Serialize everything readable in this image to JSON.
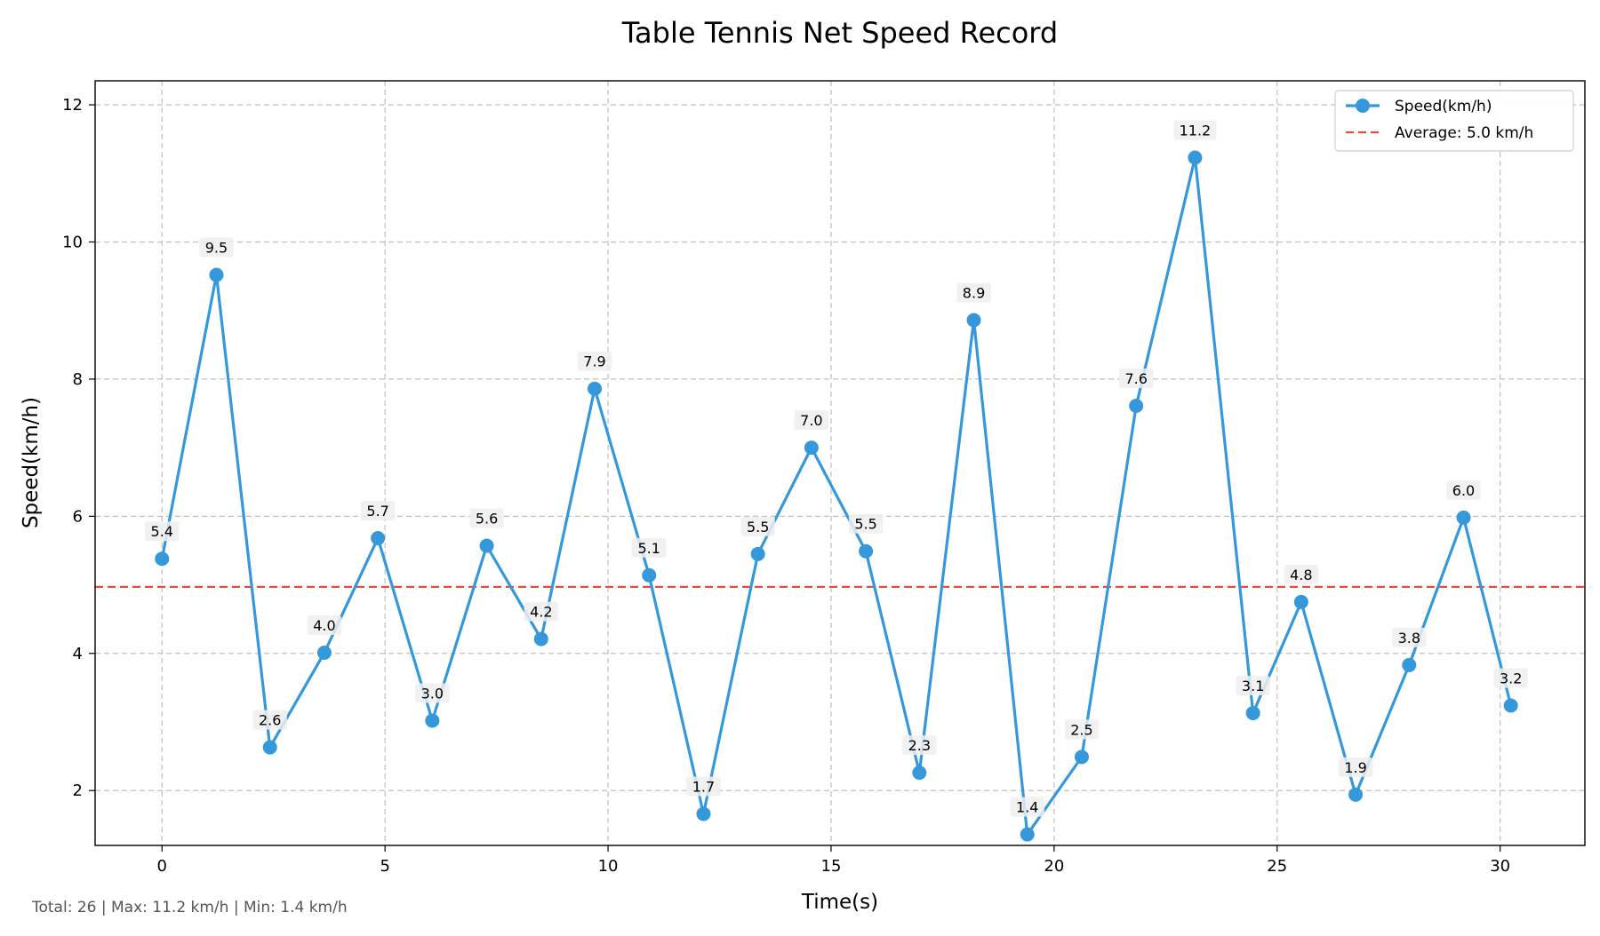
{
  "chart_data": {
    "type": "line",
    "title": "Table Tennis Net Speed Record",
    "xlabel": "Time(s)",
    "ylabel": "Speed(km/h)",
    "xlim": [
      -1.5,
      31.9
    ],
    "ylim": [
      1.2,
      12.35
    ],
    "x_ticks": [
      0,
      5,
      10,
      15,
      20,
      25,
      30
    ],
    "x_tick_labels": [
      "0",
      "5",
      "10",
      "15",
      "20",
      "25",
      "30"
    ],
    "y_ticks": [
      2,
      4,
      6,
      8,
      10,
      12
    ],
    "y_tick_labels": [
      "2",
      "4",
      "6",
      "8",
      "10",
      "12"
    ],
    "grid": true,
    "legend_position": "top-right",
    "series": [
      {
        "name": "Speed(km/h)",
        "color": "#3498db",
        "x": [
          0,
          1.22,
          2.42,
          3.64,
          4.84,
          6.06,
          7.28,
          8.5,
          9.7,
          10.92,
          12.14,
          13.36,
          14.56,
          15.78,
          16.98,
          18.2,
          19.4,
          20.62,
          21.84,
          23.16,
          24.46,
          25.54,
          26.76,
          27.96,
          29.18,
          30.24
        ],
        "y": [
          5.38,
          9.52,
          2.63,
          4.01,
          5.68,
          3.02,
          5.57,
          4.21,
          7.86,
          5.14,
          1.66,
          5.45,
          7.0,
          5.49,
          2.26,
          8.86,
          1.36,
          2.49,
          7.61,
          11.23,
          3.13,
          4.75,
          1.94,
          3.83,
          5.98,
          3.24
        ],
        "labels": [
          "5.4",
          "9.5",
          "2.6",
          "4.0",
          "5.7",
          "3.0",
          "5.6",
          "4.2",
          "7.9",
          "5.1",
          "1.7",
          "5.5",
          "7.0",
          "5.5",
          "2.3",
          "8.9",
          "1.4",
          "2.5",
          "7.6",
          "11.2",
          "3.1",
          "4.8",
          "1.9",
          "3.8",
          "6.0",
          "3.2"
        ]
      }
    ],
    "average": {
      "label": "Average: 5.0 km/h",
      "value": 4.97,
      "color": "#e74c3c"
    }
  },
  "footer": {
    "text": "Total: 26 | Max: 11.2 km/h | Min: 1.4 km/h"
  }
}
